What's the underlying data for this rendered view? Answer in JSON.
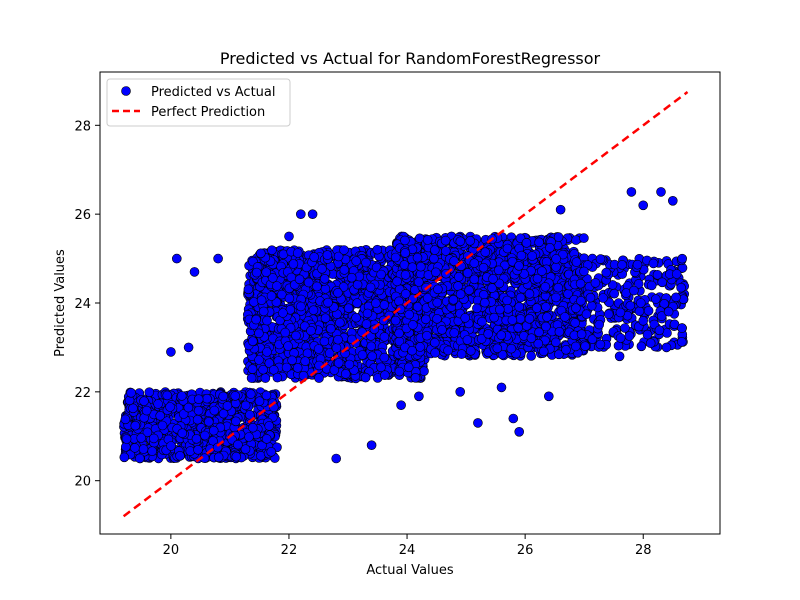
{
  "chart_data": {
    "type": "scatter",
    "title": "Predicted vs Actual for RandomForestRegressor",
    "xlabel": "Actual Values",
    "ylabel": "Predicted Values",
    "xlim": [
      18.8,
      29.3
    ],
    "ylim": [
      18.8,
      29.2
    ],
    "xticks": [
      20,
      22,
      24,
      26,
      28
    ],
    "yticks": [
      20,
      22,
      24,
      26,
      28
    ],
    "grid": false,
    "legend_position": "upper-left",
    "series": [
      {
        "name": "Predicted vs Actual",
        "color": "#0000ff",
        "edgecolor": "#000000",
        "clusters": [
          {
            "x": [
              19.2,
              21.8
            ],
            "y": [
              20.5,
              22.0
            ],
            "count": 900
          },
          {
            "x": [
              21.3,
              24.3
            ],
            "y": [
              22.3,
              25.2
            ],
            "count": 1500
          },
          {
            "x": [
              23.8,
              27.0
            ],
            "y": [
              22.8,
              25.5
            ],
            "count": 1500
          },
          {
            "x": [
              26.8,
              28.7
            ],
            "y": [
              23.0,
              25.0
            ],
            "count": 300
          }
        ],
        "outliers": [
          [
            20.1,
            25.0
          ],
          [
            20.4,
            24.7
          ],
          [
            20.8,
            25.0
          ],
          [
            22.2,
            26.0
          ],
          [
            22.0,
            25.5
          ],
          [
            28.5,
            26.3
          ],
          [
            28.3,
            26.5
          ],
          [
            27.8,
            26.5
          ],
          [
            28.0,
            26.2
          ],
          [
            26.6,
            26.1
          ],
          [
            25.6,
            22.1
          ],
          [
            26.4,
            21.9
          ],
          [
            25.2,
            21.3
          ],
          [
            25.9,
            21.1
          ],
          [
            24.2,
            21.9
          ],
          [
            23.4,
            20.8
          ],
          [
            22.8,
            20.5
          ],
          [
            20.3,
            23.0
          ],
          [
            20.0,
            22.9
          ],
          [
            27.6,
            22.8
          ],
          [
            28.0,
            23.6
          ],
          [
            25.8,
            21.4
          ],
          [
            23.9,
            21.7
          ],
          [
            24.9,
            22.0
          ],
          [
            22.4,
            26.0
          ]
        ]
      },
      {
        "name": "Perfect Prediction",
        "color": "#ff0000",
        "style": "dashed",
        "x": [
          19.2,
          28.75
        ],
        "y": [
          19.2,
          28.75
        ]
      }
    ]
  }
}
